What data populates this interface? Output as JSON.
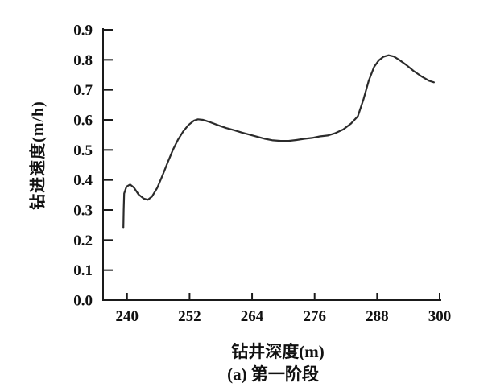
{
  "colors": {
    "background": "#ffffff",
    "axis": "#1a1a1a",
    "line": "#2b2b2b",
    "text": "#111111"
  },
  "chart_data": {
    "type": "line",
    "title": "",
    "xlabel": "钻井深度(m)",
    "ylabel": "钻进速度(m/h)",
    "caption": "(a) 第一阶段",
    "xlim": [
      235.4,
      300
    ],
    "ylim": [
      0,
      0.9
    ],
    "grid": false,
    "legend": "none",
    "xtick_values": [
      240,
      252,
      264,
      276,
      288,
      300
    ],
    "xtick_labels": [
      "240",
      "252",
      "264",
      "276",
      "288",
      "300"
    ],
    "ytick_values": [
      0.0,
      0.1,
      0.2,
      0.3,
      0.4,
      0.5,
      0.6,
      0.7,
      0.8,
      0.9
    ],
    "ytick_labels": [
      "0.0",
      "0.1",
      "0.2",
      "0.3",
      "0.4",
      "0.5",
      "0.6",
      "0.7",
      "0.8",
      "0.9"
    ],
    "series": [
      {
        "name": "钻进速度",
        "x": [
          239.3,
          239.35,
          239.45,
          239.9,
          240.6,
          241.3,
          242.2,
          243.2,
          244.0,
          244.8,
          245.8,
          246.8,
          247.8,
          248.8,
          249.8,
          250.8,
          251.8,
          252.8,
          253.6,
          254.6,
          256.0,
          257.5,
          259.0,
          260.5,
          262.0,
          263.5,
          265.0,
          266.5,
          268.0,
          269.5,
          271.0,
          272.5,
          274.0,
          275.5,
          277.0,
          278.5,
          280.0,
          281.5,
          283.0,
          284.3,
          285.4,
          286.4,
          287.4,
          288.3,
          289.2,
          290.2,
          291.2,
          292.3,
          293.6,
          295.0,
          296.5,
          298.0,
          298.9
        ],
        "y": [
          0.24,
          0.3,
          0.355,
          0.378,
          0.385,
          0.375,
          0.352,
          0.338,
          0.334,
          0.345,
          0.374,
          0.415,
          0.458,
          0.5,
          0.535,
          0.562,
          0.583,
          0.597,
          0.602,
          0.6,
          0.592,
          0.582,
          0.573,
          0.566,
          0.558,
          0.551,
          0.544,
          0.537,
          0.532,
          0.53,
          0.53,
          0.533,
          0.537,
          0.54,
          0.545,
          0.548,
          0.556,
          0.568,
          0.588,
          0.612,
          0.669,
          0.731,
          0.776,
          0.798,
          0.81,
          0.815,
          0.811,
          0.799,
          0.783,
          0.763,
          0.745,
          0.73,
          0.725
        ]
      }
    ]
  }
}
